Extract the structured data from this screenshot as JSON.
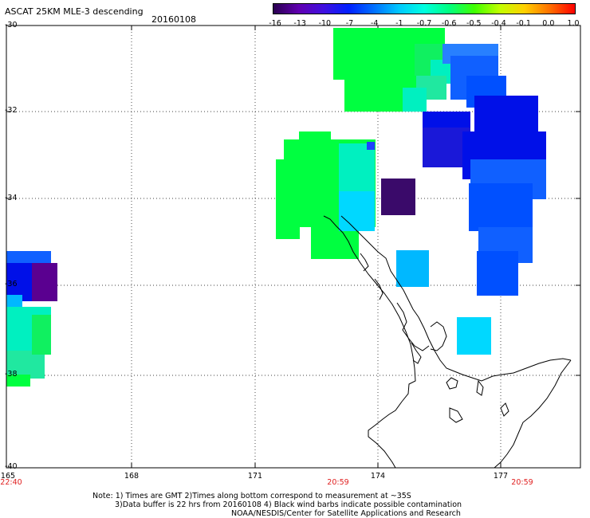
{
  "header": {
    "title": "ASCAT 25KM MLE-3 descending",
    "date": "20160108"
  },
  "colorbar": {
    "labels": [
      "-16",
      "-13",
      "-10",
      "-7",
      "-4",
      "-1",
      "-0.7",
      "-0.6",
      "-0.5",
      "-0.4",
      "-0.1",
      "0.0",
      "1.0"
    ],
    "colors": [
      "#2a0050",
      "#6000b0",
      "#4010e0",
      "#0020ff",
      "#0070ff",
      "#00c8ff",
      "#00ffe0",
      "#00ff80",
      "#40ff00",
      "#c0ff00",
      "#ffd000",
      "#ff7000",
      "#ff0000"
    ]
  },
  "map": {
    "lat_labels": [
      "-30",
      "-32",
      "-34",
      "-36",
      "-38",
      "-40"
    ],
    "lon_labels": [
      "165",
      "168",
      "171",
      "174",
      "177"
    ],
    "time_labels": [
      "22:40",
      "20:59",
      "20:59"
    ],
    "coastline_color": "#000000",
    "grid_style": "dotted"
  },
  "notes": {
    "line1": "Note: 1) Times are GMT 2)Times along bottom correspond to measurement at ~35S",
    "line2": "3)Data buffer is 22 hrs from 20160108 4) Black wind barbs indicate possible contamination",
    "line3": "NOAA/NESDIS/Center for Satellite Applications and Research"
  }
}
